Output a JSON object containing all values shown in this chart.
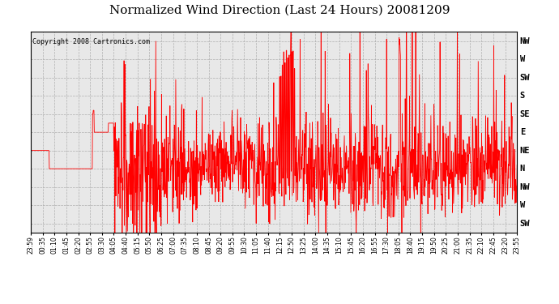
{
  "title": "Normalized Wind Direction (Last 24 Hours) 20081209",
  "copyright_text": "Copyright 2008 Cartronics.com",
  "title_fontsize": 11,
  "line_color": "#ff0000",
  "background_color": "#ffffff",
  "plot_bg_color": "#e8e8e8",
  "grid_color": "#aaaaaa",
  "ylabel_right": [
    "NW",
    "W",
    "SW",
    "S",
    "SE",
    "E",
    "NE",
    "N",
    "NW",
    "W",
    "SW"
  ],
  "ytick_vals": [
    10,
    9,
    8,
    7,
    6,
    5,
    4,
    3,
    2,
    1,
    0
  ],
  "ylim": [
    -0.5,
    10.5
  ],
  "xtick_labels": [
    "23:59",
    "00:35",
    "01:10",
    "01:45",
    "02:20",
    "02:55",
    "03:30",
    "04:05",
    "04:40",
    "05:15",
    "05:50",
    "06:25",
    "07:00",
    "07:35",
    "08:10",
    "08:45",
    "09:20",
    "09:55",
    "10:30",
    "11:05",
    "11:40",
    "12:15",
    "12:50",
    "13:25",
    "14:00",
    "14:35",
    "15:10",
    "15:45",
    "16:20",
    "16:55",
    "17:30",
    "18:05",
    "18:40",
    "19:15",
    "19:50",
    "20:25",
    "21:00",
    "21:35",
    "22:10",
    "22:45",
    "23:20",
    "23:55"
  ]
}
